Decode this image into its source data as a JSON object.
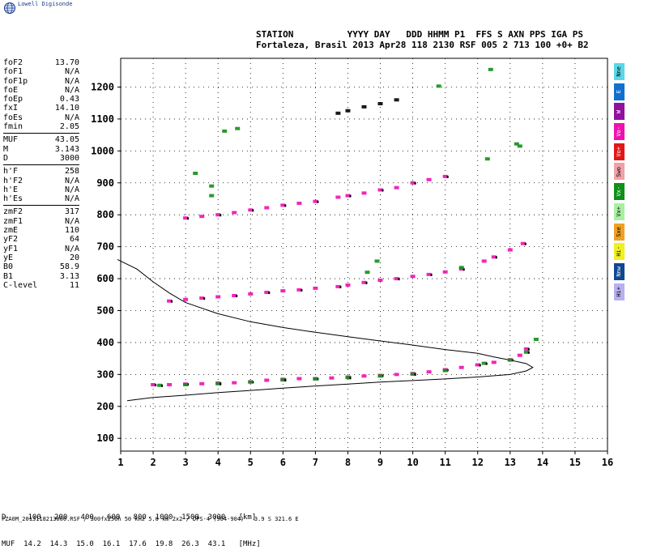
{
  "app": {
    "logo_text": "Lowell Digisonde"
  },
  "header": {
    "line1": "STATION          YYYY DAY   DDD HHMM P1  FFS S AXN PPS IGA PS",
    "line2": "Fortaleza, Brasil 2013 Apr28 118 2130 RSF 005 2 713 100 +0+ B2"
  },
  "params": {
    "group1": [
      {
        "label": "foF2",
        "value": "13.70"
      },
      {
        "label": "foF1",
        "value": "N/A"
      },
      {
        "label": "foF1p",
        "value": "N/A"
      },
      {
        "label": "foE",
        "value": "N/A"
      },
      {
        "label": "foEp",
        "value": "0.43"
      },
      {
        "label": "fxI",
        "value": "14.10"
      },
      {
        "label": "foEs",
        "value": "N/A"
      },
      {
        "label": "fmin",
        "value": "2.05"
      }
    ],
    "group2": [
      {
        "label": "MUF",
        "value": "43.05"
      },
      {
        "label": "M",
        "value": "3.143"
      },
      {
        "label": "D",
        "value": "3000"
      }
    ],
    "group3": [
      {
        "label": "h'F",
        "value": "258"
      },
      {
        "label": "h'F2",
        "value": "N/A"
      },
      {
        "label": "h'E",
        "value": "N/A"
      },
      {
        "label": "h'Es",
        "value": "N/A"
      }
    ],
    "group4": [
      {
        "label": "zmF2",
        "value": "317"
      },
      {
        "label": "zmF1",
        "value": "N/A"
      },
      {
        "label": "zmE",
        "value": "110"
      },
      {
        "label": "yF2",
        "value": "64"
      },
      {
        "label": "yF1",
        "value": "N/A"
      },
      {
        "label": "yE",
        "value": "20"
      },
      {
        "label": "B0",
        "value": "58.9"
      },
      {
        "label": "B1",
        "value": "3.13"
      },
      {
        "label": "C-level",
        "value": "11"
      }
    ]
  },
  "modes": [
    {
      "label": "Nne",
      "color": "#58d8e8"
    },
    {
      "label": "E",
      "color": "#1070d0"
    },
    {
      "label": "W",
      "color": "#9010a0"
    },
    {
      "label": "Vo-",
      "color": "#f010b0"
    },
    {
      "label": "Vo+",
      "color": "#e01818"
    },
    {
      "label": "Swo",
      "color": "#f0a0a8"
    },
    {
      "label": "Vx-",
      "color": "#109018"
    },
    {
      "label": "Vx+",
      "color": "#a8f0a0"
    },
    {
      "label": "Sxe",
      "color": "#f0a020"
    },
    {
      "label": "Hi-",
      "color": "#f0f020"
    },
    {
      "label": "Nnw",
      "color": "#104890"
    },
    {
      "label": "Hi+",
      "color": "#b8b0f0"
    }
  ],
  "footer": {
    "d_row": "D     100   200   400   600   800  1000  1500  3000   [km]",
    "muf_row": "MUF  14.2  14.3  15.0  16.1  17.6  19.8  26.3  43.1   [MHz]",
    "file_row": "FZA0M_2013118213000.RSF / 300fx256h 50 kHz 5.0 km 2x2 / DPS-4 (904-904)   3.9 S 321.6 E"
  },
  "chart_data": {
    "type": "scatter",
    "xlim": [
      1,
      16
    ],
    "ylim": [
      60,
      1290
    ],
    "x_ticks": [
      "1",
      "2",
      "3",
      "4",
      "5",
      "6",
      "7",
      "8",
      "9",
      "10",
      "11",
      "12",
      "13",
      "14",
      "15",
      "16"
    ],
    "y_ticks": [
      "100",
      "200",
      "300",
      "400",
      "500",
      "600",
      "700",
      "800",
      "900",
      "1000",
      "1100",
      "1200"
    ],
    "grid": "dotted",
    "traces": [
      {
        "name": "o-trace F",
        "color": "#f010b0",
        "points": [
          [
            2.0,
            268
          ],
          [
            2.5,
            268
          ],
          [
            3,
            270
          ],
          [
            3.5,
            271
          ],
          [
            4,
            273
          ],
          [
            4.5,
            274
          ],
          [
            5,
            277
          ],
          [
            5.5,
            282
          ],
          [
            6,
            285
          ],
          [
            6.5,
            287
          ],
          [
            7,
            287
          ],
          [
            7.5,
            289
          ],
          [
            8,
            292
          ],
          [
            8.5,
            295
          ],
          [
            9,
            297
          ],
          [
            9.5,
            300
          ],
          [
            10,
            303
          ],
          [
            10.5,
            308
          ],
          [
            11,
            315
          ],
          [
            11.5,
            322
          ],
          [
            12,
            330
          ],
          [
            12.5,
            338
          ],
          [
            13,
            346
          ],
          [
            13.3,
            360
          ],
          [
            13.5,
            380
          ]
        ]
      },
      {
        "name": "x-trace F",
        "color": "#109018",
        "points": [
          [
            2.2,
            266
          ],
          [
            3,
            268
          ],
          [
            4,
            271
          ],
          [
            5,
            276
          ],
          [
            6,
            283
          ],
          [
            7,
            286
          ],
          [
            8,
            290
          ],
          [
            9,
            295
          ],
          [
            10,
            301
          ],
          [
            11,
            312
          ],
          [
            12.2,
            335
          ],
          [
            13,
            345
          ],
          [
            13.5,
            370
          ],
          [
            13.8,
            410
          ]
        ]
      },
      {
        "name": "F 2-hop",
        "color": "#f010b0",
        "points": [
          [
            2.5,
            530
          ],
          [
            3,
            535
          ],
          [
            3.5,
            539
          ],
          [
            4,
            543
          ],
          [
            4.5,
            547
          ],
          [
            5,
            552
          ],
          [
            5.5,
            557
          ],
          [
            6,
            562
          ],
          [
            6.5,
            565
          ],
          [
            7,
            570
          ],
          [
            7.7,
            575
          ],
          [
            8,
            580
          ],
          [
            8.5,
            588
          ],
          [
            9,
            595
          ],
          [
            9.5,
            600
          ],
          [
            10,
            607
          ],
          [
            10.5,
            613
          ],
          [
            11,
            621
          ],
          [
            11.5,
            630
          ],
          [
            12.2,
            655
          ],
          [
            12.5,
            668
          ],
          [
            13,
            690
          ],
          [
            13.4,
            710
          ]
        ]
      },
      {
        "name": "F 3-hop",
        "color": "#f010b0",
        "points": [
          [
            3,
            790
          ],
          [
            3.5,
            795
          ],
          [
            4,
            800
          ],
          [
            4.5,
            807
          ],
          [
            5,
            815
          ],
          [
            5.5,
            822
          ],
          [
            6,
            830
          ],
          [
            6.5,
            836
          ],
          [
            7,
            842
          ],
          [
            7.7,
            855
          ],
          [
            8,
            860
          ],
          [
            8.5,
            868
          ],
          [
            9,
            878
          ],
          [
            9.5,
            885
          ],
          [
            10,
            900
          ],
          [
            10.5,
            910
          ],
          [
            11,
            920
          ]
        ]
      },
      {
        "name": "F 4-hop",
        "color": "#000000",
        "points": [
          [
            7.7,
            1118
          ],
          [
            8,
            1126
          ],
          [
            8.5,
            1138
          ],
          [
            9,
            1148
          ],
          [
            9.5,
            1160
          ]
        ]
      },
      {
        "name": "scattered",
        "color": "#109018",
        "points": [
          [
            3.8,
            860
          ],
          [
            3.8,
            890
          ],
          [
            3.3,
            930
          ],
          [
            4.2,
            1062
          ],
          [
            4.6,
            1070
          ],
          [
            10.8,
            1203
          ],
          [
            12.4,
            1255
          ],
          [
            12.3,
            975
          ],
          [
            13.2,
            1022
          ],
          [
            13.3,
            1015
          ],
          [
            11.5,
            635
          ],
          [
            8.9,
            655
          ],
          [
            8.6,
            620
          ]
        ]
      }
    ],
    "profile": [
      [
        0.9,
        660
      ],
      [
        1.5,
        630
      ],
      [
        2,
        590
      ],
      [
        2.5,
        555
      ],
      [
        3,
        525
      ],
      [
        4,
        490
      ],
      [
        5,
        465
      ],
      [
        6,
        447
      ],
      [
        7,
        432
      ],
      [
        8,
        418
      ],
      [
        9,
        405
      ],
      [
        10,
        392
      ],
      [
        11,
        378
      ],
      [
        12,
        366
      ],
      [
        12.5,
        355
      ],
      [
        13,
        345
      ],
      [
        13.5,
        334
      ],
      [
        13.7,
        322
      ],
      [
        13.5,
        311
      ],
      [
        13,
        300
      ],
      [
        12,
        292
      ],
      [
        11,
        286
      ],
      [
        10,
        281
      ],
      [
        9,
        276
      ],
      [
        8,
        270
      ],
      [
        7,
        264
      ],
      [
        6,
        257
      ],
      [
        5,
        250
      ],
      [
        4,
        243
      ],
      [
        3,
        235
      ],
      [
        2,
        228
      ],
      [
        1.2,
        218
      ]
    ]
  }
}
